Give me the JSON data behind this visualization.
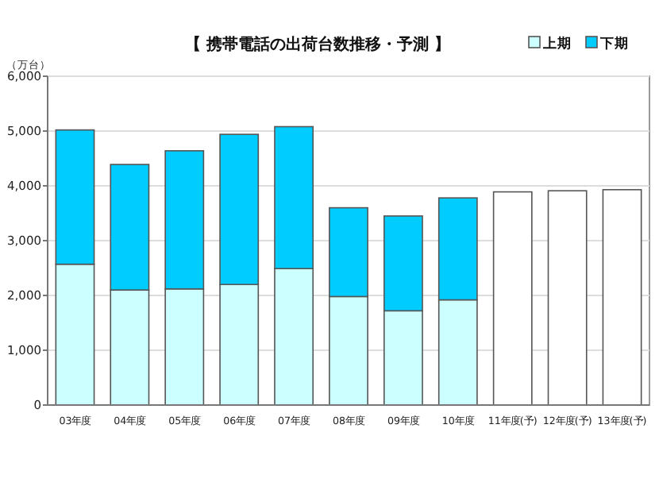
{
  "chart_data": {
    "type": "bar",
    "title": "【 携帯電話の出荷台数推移・予測 】",
    "ylabel": "（万台）",
    "categories": [
      "03年度",
      "04年度",
      "05年度",
      "06年度",
      "07年度",
      "08年度",
      "09年度",
      "10年度",
      "11年度(予)",
      "12年度(予)",
      "13年度(予)"
    ],
    "series": [
      {
        "name": "上期",
        "color": "#ccffff",
        "values": [
          2570,
          2100,
          2120,
          2200,
          2490,
          1980,
          1720,
          1920,
          null,
          null,
          null
        ]
      },
      {
        "name": "下期",
        "color": "#00ccff",
        "values": [
          2450,
          2290,
          2520,
          2740,
          2590,
          1620,
          1730,
          1860,
          null,
          null,
          null
        ]
      },
      {
        "color": "#ffffff",
        "values": [
          null,
          null,
          null,
          null,
          null,
          null,
          null,
          null,
          3890,
          3910,
          3930
        ]
      }
    ],
    "stacked": true,
    "ylim": [
      0,
      6000
    ],
    "yticks": [
      {
        "value": 0,
        "label": "0"
      },
      {
        "value": 1000,
        "label": "1,000"
      },
      {
        "value": 2000,
        "label": "2,000"
      },
      {
        "value": 3000,
        "label": "3,000"
      },
      {
        "value": 4000,
        "label": "4,000"
      },
      {
        "value": 5000,
        "label": "5,000"
      },
      {
        "value": 6000,
        "label": "6,000"
      }
    ],
    "grid": "y",
    "legend": "top right"
  }
}
